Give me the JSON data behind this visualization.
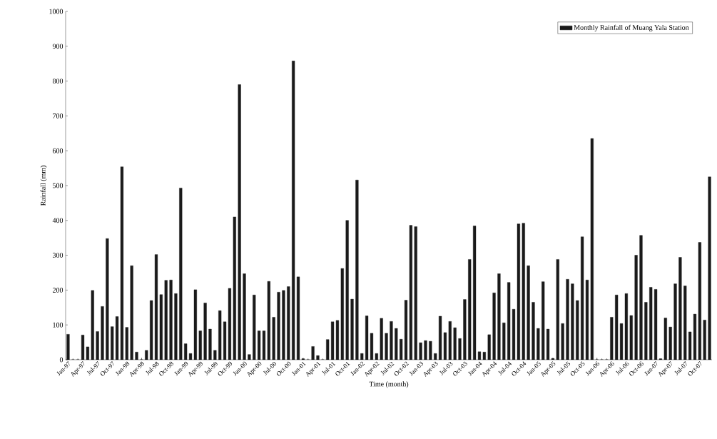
{
  "chart_data": {
    "type": "bar",
    "xlabel": "Time (month)",
    "ylabel": "Rainfall (mm)",
    "categories": [
      "Jan-97",
      null,
      null,
      "Apr-97",
      null,
      null,
      "Jul-97",
      null,
      null,
      "Oct-97",
      null,
      null,
      "Jan-98",
      null,
      null,
      "Apr-98",
      null,
      null,
      "Jul-98",
      null,
      null,
      "Oct-98",
      null,
      null,
      "Jan-99",
      null,
      null,
      "Apr-99",
      null,
      null,
      "Jul-99",
      null,
      null,
      "Oct-99",
      null,
      null,
      "Jan-00",
      null,
      null,
      "Apr-00",
      null,
      null,
      "Jul-00",
      null,
      null,
      "Oct-00",
      null,
      null,
      "Jan-01",
      null,
      null,
      "Apr-01",
      null,
      null,
      "Jul-01",
      null,
      null,
      "Oct-01",
      null,
      null,
      "Jan-02",
      null,
      null,
      "Apr-02",
      null,
      null,
      "Jul-02",
      null,
      null,
      "Oct-02",
      null,
      null,
      "Jan-03",
      null,
      null,
      "Apr-03",
      null,
      null,
      "Jul-03",
      null,
      null,
      "Oct-03",
      null,
      null,
      "Jan-04",
      null,
      null,
      "Apr-04",
      null,
      null,
      "Jul-04",
      null,
      null,
      "Oct-04",
      null,
      null,
      "Jan-05",
      null,
      null,
      "Apr-05",
      null,
      null,
      "Jul-05",
      null,
      null,
      "Oct-05",
      null,
      null,
      "Jan-06",
      null,
      null,
      "Apr-06",
      null,
      null,
      "Jul-06",
      null,
      null,
      "Oct-06",
      null,
      null,
      "Jan-07",
      null,
      null,
      "Apr-07",
      null,
      null,
      "Jul-07",
      null,
      null,
      "Oct-07",
      null,
      null
    ],
    "series": [
      {
        "name": "Monthly Rainfall of Muang Yala Station",
        "color": "#1a1a1a",
        "values": [
          73,
          0,
          0,
          71,
          37,
          199,
          81,
          153,
          348,
          95,
          124,
          554,
          93,
          270,
          22,
          0,
          27,
          170,
          302,
          187,
          228,
          229,
          190,
          493,
          46,
          18,
          201,
          83,
          163,
          88,
          27,
          141,
          109,
          205,
          410,
          790,
          247,
          15,
          186,
          83,
          83,
          225,
          122,
          194,
          199,
          210,
          858,
          238,
          3,
          0,
          38,
          12,
          0,
          58,
          109,
          113,
          262,
          400,
          174,
          516,
          18,
          126,
          76,
          18,
          119,
          76,
          110,
          90,
          59,
          171,
          386,
          382,
          49,
          55,
          53,
          18,
          125,
          78,
          110,
          92,
          61,
          173,
          288,
          384,
          23,
          22,
          72,
          192,
          247,
          106,
          222,
          145,
          390,
          392,
          270,
          165,
          90,
          224,
          88,
          4,
          288,
          104,
          231,
          218,
          170,
          353,
          229,
          635,
          0,
          0,
          0,
          122,
          186,
          104,
          190,
          127,
          300,
          357,
          165,
          208,
          202,
          3,
          120,
          94,
          218,
          294,
          212,
          80,
          131,
          337,
          114,
          525
        ]
      }
    ],
    "ylim": [
      0,
      1000
    ],
    "yticks": [
      0,
      100,
      200,
      300,
      400,
      500,
      600,
      700,
      800,
      900,
      1000
    ],
    "legend": "top right"
  }
}
